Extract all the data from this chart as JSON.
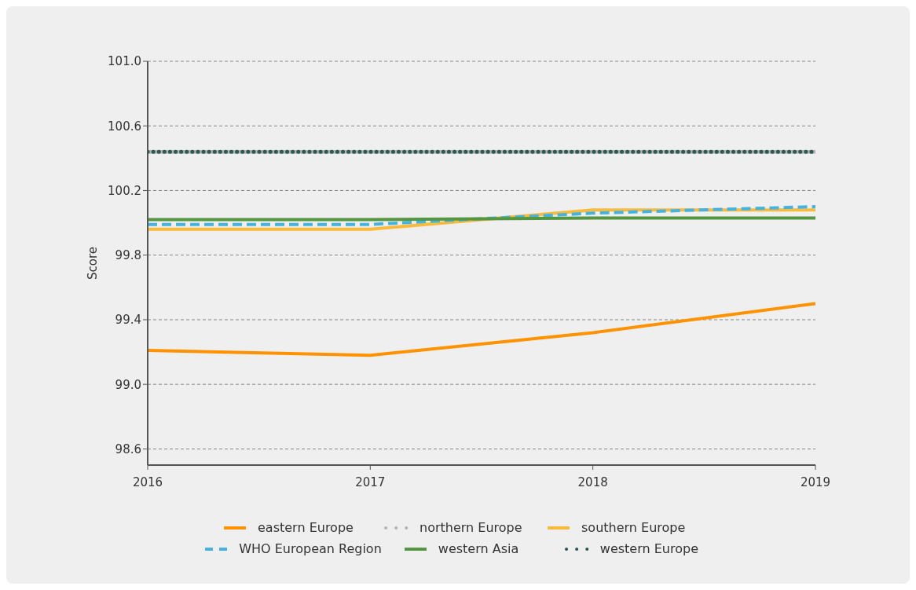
{
  "chart_data": {
    "type": "line",
    "ylabel": "Score",
    "x": [
      2016,
      2017,
      2018,
      2019
    ],
    "xlim": [
      2016,
      2019
    ],
    "xticks": [
      2016,
      2017,
      2018,
      2019
    ],
    "ylim": [
      98.5,
      101.0
    ],
    "yticks": [
      98.6,
      {
        "value": 99,
        "label": "99.0"
      },
      99.4,
      99.8,
      100.2,
      100.6,
      {
        "value": 101,
        "label": "101.0"
      }
    ],
    "grid": "y",
    "legend": "bottom",
    "marker": "none",
    "series": [
      {
        "name": "eastern Europe",
        "color": "#ff9200",
        "line_style": "solid",
        "values": [
          99.21,
          99.18,
          99.32,
          99.5
        ]
      },
      {
        "name": "northern Europe",
        "color": "#b4b4b4",
        "line_style": "dotted",
        "values": [
          100.44,
          100.44,
          100.44,
          100.44
        ]
      },
      {
        "name": "southern Europe",
        "color": "#fbbb3a",
        "line_style": "solid",
        "values": [
          99.96,
          99.96,
          100.08,
          100.08
        ]
      },
      {
        "name": "WHO European Region",
        "color": "#45b3e0",
        "line_style": "dashed",
        "values": [
          99.99,
          99.99,
          100.06,
          100.1
        ]
      },
      {
        "name": "western Asia",
        "color": "#559640",
        "line_style": "solid",
        "values": [
          100.02,
          100.02,
          100.03,
          100.03
        ]
      },
      {
        "name": "western Europe",
        "color": "#2c5a52",
        "line_style": "dotted",
        "values": [
          100.44,
          100.44,
          100.44,
          100.44
        ]
      }
    ]
  }
}
